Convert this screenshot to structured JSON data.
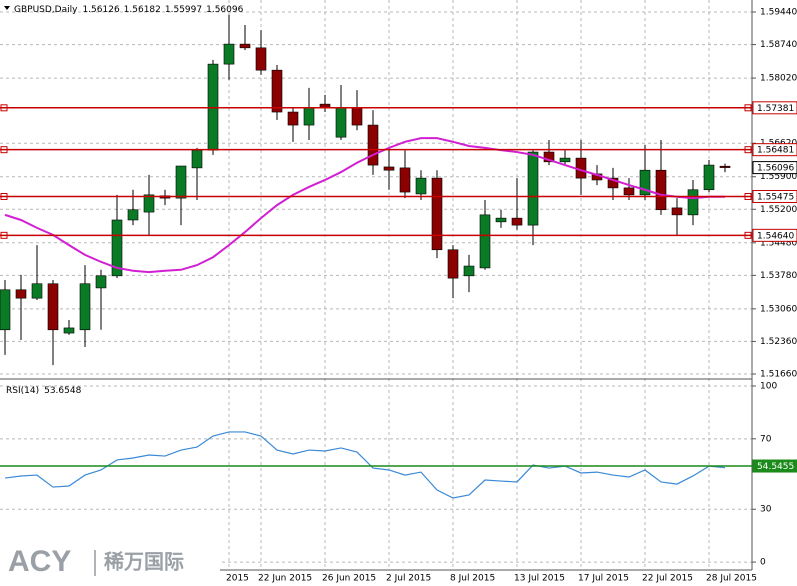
{
  "chart_data": [
    {
      "type": "candlestick",
      "title": "GBPUSD,Daily",
      "categories": [
        null,
        null,
        null,
        null,
        null,
        null,
        null,
        null,
        null,
        null,
        null,
        null,
        null,
        null,
        "2015",
        null,
        "22 Jun 2015",
        null,
        null,
        null,
        "26 Jun 2015",
        null,
        null,
        null,
        "2 Jul 2015",
        null,
        null,
        null,
        "8 Jul 2015",
        null,
        null,
        null,
        "13 Jul 2015",
        null,
        null,
        null,
        "17 Jul 2015",
        null,
        null,
        null,
        "22 Jul 2015",
        null,
        null,
        null,
        "28 Jul 2015",
        null
      ],
      "open": [
        1.5261,
        1.5347,
        1.5329,
        1.536,
        1.5254,
        1.5261,
        1.5351,
        1.5377,
        1.5497,
        1.5514,
        1.5549,
        1.5544,
        1.5609,
        1.5647,
        1.5832,
        1.5875,
        1.5867,
        1.5819,
        1.5729,
        1.5701,
        1.5746,
        1.5675,
        1.5738,
        1.5701,
        1.5611,
        1.5609,
        1.5553,
        1.5587,
        1.5433,
        1.5377,
        1.5394,
        1.5493,
        1.5501,
        1.5486,
        1.5643,
        1.5622,
        1.563,
        1.5596,
        1.5587,
        1.5566,
        1.5551,
        1.5604,
        1.5523,
        1.5508,
        1.5562,
        1.56126
      ],
      "high": [
        1.5368,
        1.5379,
        1.5443,
        1.5368,
        1.5282,
        1.54,
        1.539,
        1.5551,
        1.5562,
        1.5594,
        1.5562,
        1.5613,
        1.5652,
        1.5841,
        1.5938,
        1.5916,
        1.5905,
        1.583,
        1.5738,
        1.5781,
        1.5766,
        1.5787,
        1.5776,
        1.5733,
        1.5652,
        1.5647,
        1.5604,
        1.5604,
        1.5443,
        1.5422,
        1.554,
        1.5519,
        1.5587,
        1.5647,
        1.5669,
        1.5647,
        1.5669,
        1.5615,
        1.5609,
        1.5587,
        1.5658,
        1.5669,
        1.5544,
        1.5583,
        1.5626,
        1.56182
      ],
      "low": [
        1.5207,
        1.5239,
        1.5325,
        1.5185,
        1.525,
        1.5224,
        1.5261,
        1.5372,
        1.5486,
        1.5465,
        1.5529,
        1.5486,
        1.554,
        1.5637,
        1.5798,
        1.5862,
        1.5809,
        1.5712,
        1.5665,
        1.5669,
        1.5729,
        1.5669,
        1.569,
        1.5594,
        1.5562,
        1.5544,
        1.554,
        1.5415,
        1.5329,
        1.5342,
        1.539,
        1.548,
        1.5476,
        1.5443,
        1.5615,
        1.5615,
        1.5551,
        1.5572,
        1.554,
        1.554,
        1.554,
        1.5508,
        1.5465,
        1.5486,
        1.5557,
        1.55997
      ],
      "close": [
        1.5347,
        1.5329,
        1.536,
        1.5261,
        1.5265,
        1.536,
        1.5377,
        1.5497,
        1.5519,
        1.5551,
        1.5544,
        1.5613,
        1.5647,
        1.5832,
        1.5875,
        1.5867,
        1.5819,
        1.5729,
        1.5701,
        1.5738,
        1.5738,
        1.5738,
        1.5701,
        1.5615,
        1.5604,
        1.5557,
        1.5587,
        1.5433,
        1.5372,
        1.5398,
        1.5508,
        1.5501,
        1.5486,
        1.5643,
        1.5622,
        1.563,
        1.5587,
        1.5583,
        1.5566,
        1.5551,
        1.5604,
        1.5519,
        1.5508,
        1.5562,
        1.5615,
        1.56096
      ],
      "up_color": "#0b7a26",
      "down_color": "#8b0000",
      "ma": {
        "color": "#d21fd2",
        "values": [
          1.5508,
          1.5497,
          1.548,
          1.5465,
          1.5443,
          1.5422,
          1.5407,
          1.5394,
          1.5388,
          1.5385,
          1.5388,
          1.539,
          1.54,
          1.5417,
          1.5443,
          1.5471,
          1.5501,
          1.5529,
          1.5551,
          1.5568,
          1.5583,
          1.56,
          1.562,
          1.5637,
          1.5652,
          1.5665,
          1.5673,
          1.5673,
          1.5665,
          1.5656,
          1.5652,
          1.5647,
          1.5643,
          1.5637,
          1.5626,
          1.5615,
          1.5604,
          1.5594,
          1.5583,
          1.5572,
          1.5562,
          1.5551,
          1.5547,
          1.5544,
          1.5547,
          1.5547
        ]
      },
      "levels": [
        1.57381,
        1.56481,
        1.55475,
        {
          "value": 1.5464,
          "label": "1.54640"
        }
      ],
      "level_color": "#c80000",
      "ylim": [
        1.51574,
        1.59698
      ],
      "yticks": [
        {
          "value": 1.5944,
          "label": "1.59440"
        },
        {
          "value": 1.5874,
          "label": "1.58740"
        },
        {
          "value": 1.5802,
          "label": "1.58020"
        },
        {
          "value": 1.5662,
          "label": "1.56620"
        },
        {
          "value": 1.559,
          "label": "1.55900"
        },
        {
          "value": 1.552,
          "label": "1.55200"
        },
        {
          "value": 1.5448,
          "label": "1.54480"
        },
        {
          "value": 1.5378,
          "label": "1.53780"
        },
        {
          "value": 1.5306,
          "label": "1.53060"
        },
        {
          "value": 1.5236,
          "label": "1.52360"
        },
        {
          "value": 1.5166,
          "label": "1.51660"
        }
      ],
      "grid": true
    },
    {
      "type": "line",
      "title": "RSI(14)",
      "values": [
        47.7,
        48.9,
        49.4,
        42.6,
        43.2,
        49.4,
        52.3,
        58.0,
        59.1,
        60.8,
        60.2,
        63.6,
        65.3,
        71.6,
        73.9,
        73.9,
        71.6,
        63.6,
        61.4,
        63.6,
        63.1,
        64.8,
        62.5,
        53.4,
        52.3,
        49.4,
        51.1,
        40.9,
        36.4,
        38.1,
        46.6,
        46.0,
        45.5,
        55.1,
        53.4,
        54.5,
        50.6,
        51.1,
        49.4,
        48.3,
        52.3,
        45.5,
        44.3,
        48.9,
        54.5,
        53.6548
      ],
      "color": "#3a8ad6",
      "levels": [
        54.5455
      ],
      "level_color": "#1a8a1a",
      "ylim": [
        -4.5,
        103.4
      ],
      "yticks": [
        100,
        70,
        30,
        0
      ],
      "grid": true
    }
  ],
  "watermark": {
    "brand": "ACY",
    "name": "稀万国际"
  }
}
